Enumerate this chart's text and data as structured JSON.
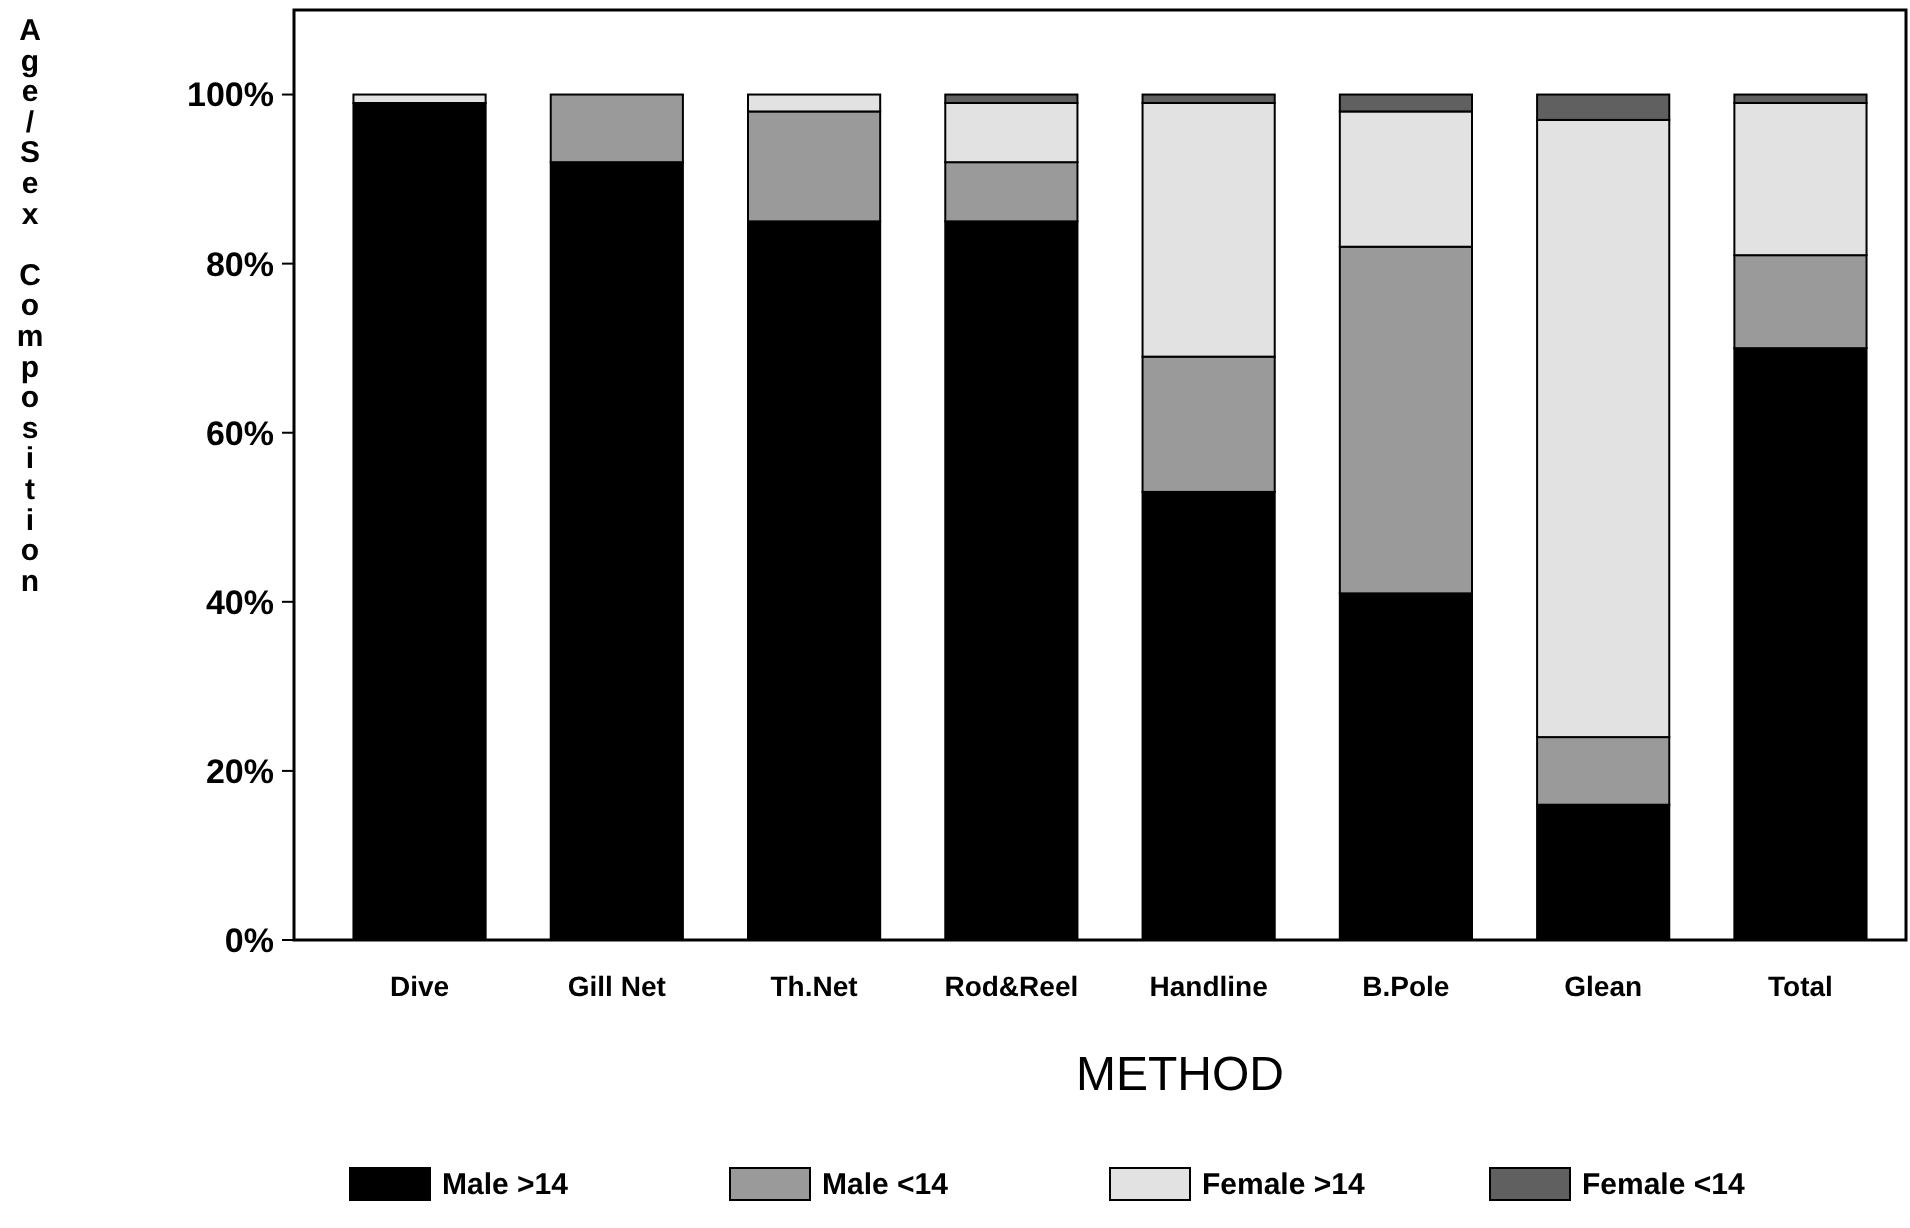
{
  "chart_data": {
    "type": "bar",
    "stacked": true,
    "xlabel": "METHOD",
    "ylabel": "Age/Sex Composition",
    "categories": [
      "Dive",
      "Gill Net",
      "Th.Net",
      "Rod&Reel",
      "Handline",
      "B.Pole",
      "Glean",
      "Total"
    ],
    "series": [
      {
        "name": "Male >14",
        "color": "#000000",
        "values": [
          99,
          92,
          85,
          85,
          53,
          41,
          16,
          70
        ]
      },
      {
        "name": "Male <14",
        "color": "#9a9a9a",
        "values": [
          0,
          8,
          13,
          7,
          16,
          41,
          8,
          11
        ]
      },
      {
        "name": "Female >14",
        "color": "#e2e2e2",
        "values": [
          1,
          0,
          2,
          7,
          30,
          16,
          73,
          18
        ]
      },
      {
        "name": "Female <14",
        "color": "#606060",
        "values": [
          0,
          0,
          0,
          1,
          1,
          2,
          3,
          1
        ]
      }
    ],
    "ylim": [
      0,
      110
    ],
    "yticks": [
      {
        "value": 0,
        "label": "0%"
      },
      {
        "value": 20,
        "label": "20%"
      },
      {
        "value": 40,
        "label": "40%"
      },
      {
        "value": 60,
        "label": "60%"
      },
      {
        "value": 80,
        "label": "80%"
      },
      {
        "value": 100,
        "label": "100%"
      }
    ],
    "grid": false,
    "legend": "bottom"
  }
}
